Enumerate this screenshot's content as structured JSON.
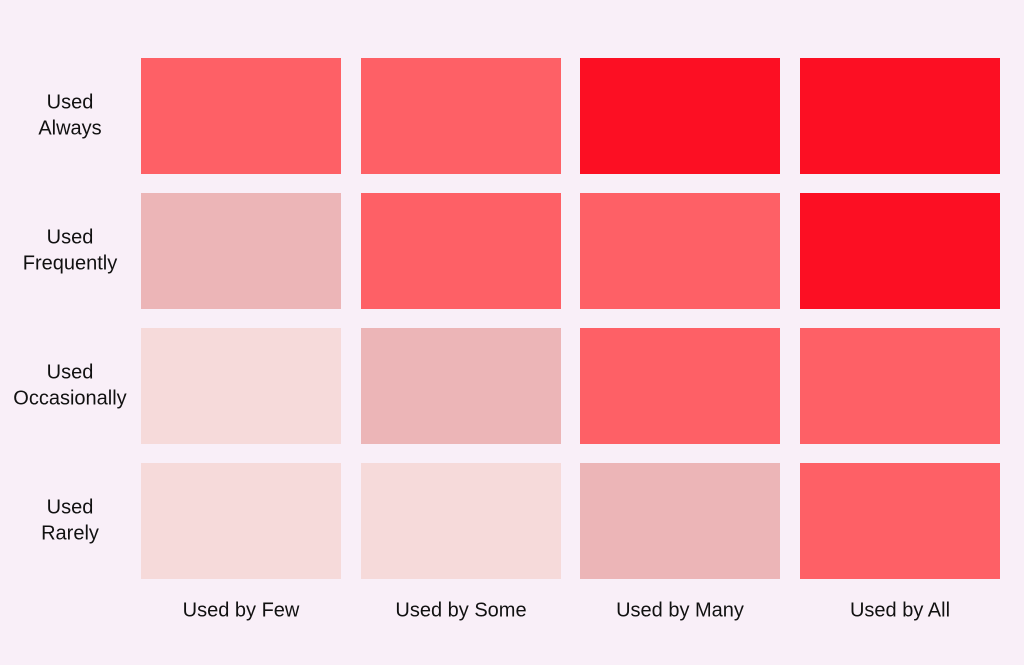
{
  "columns": [
    "Used by Few",
    "Used by Some",
    "Used by Many",
    "Used by All"
  ],
  "rows": [
    {
      "label": [
        "Used",
        "Always"
      ],
      "cells": [
        "#fe6066",
        "#fe6066",
        "#fc0f23",
        "#fc0f23"
      ]
    },
    {
      "label": [
        "Used",
        "Frequently"
      ],
      "cells": [
        "#ecb5b7",
        "#fe6066",
        "#fe6066",
        "#fc0f23"
      ]
    },
    {
      "label": [
        "Used",
        "Occasionally"
      ],
      "cells": [
        "#f6dada",
        "#ecb5b7",
        "#fe6066",
        "#fe6066"
      ]
    },
    {
      "label": [
        "Used",
        "Rarely"
      ],
      "cells": [
        "#f6dada",
        "#f6dada",
        "#ecb5b7",
        "#fe6066"
      ]
    }
  ]
}
